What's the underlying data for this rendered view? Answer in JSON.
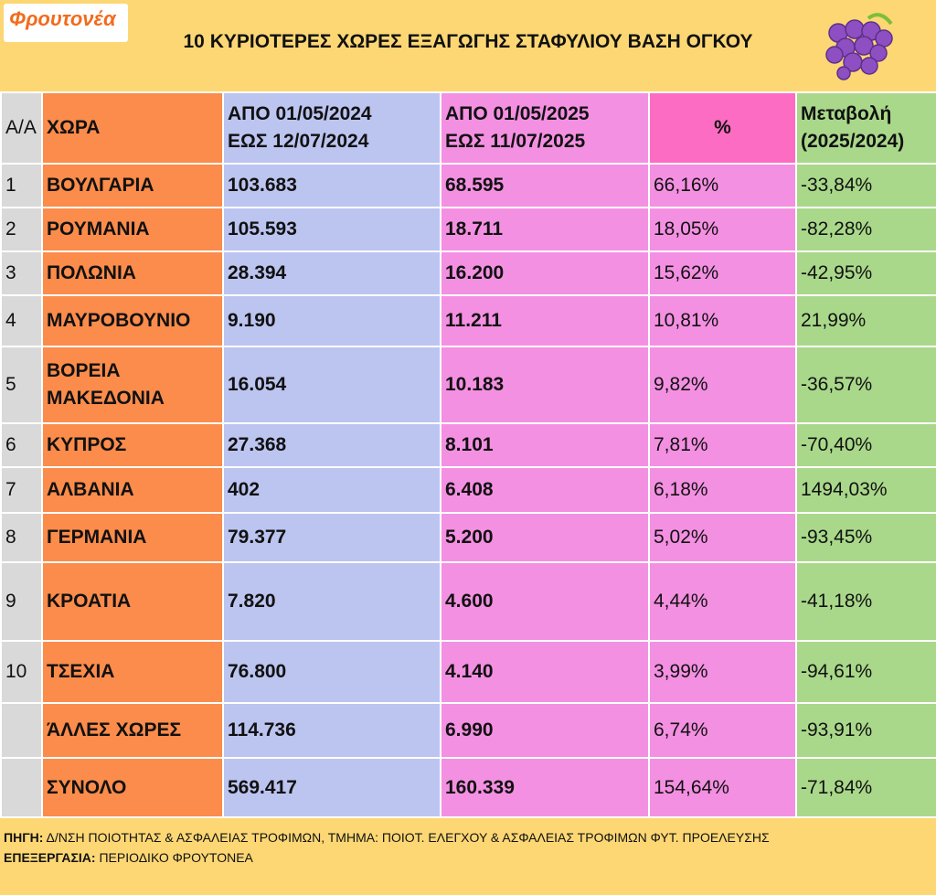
{
  "header": {
    "logo": "Φρουτονέα",
    "title": "10 ΚΥΡΙΟΤΕΡΕΣ ΧΩΡΕΣ ΕΞΑΓΩΓΗΣ ΣΤΑΦΥΛΙΟΥ ΒΑΣΗ ΟΓΚΟΥ"
  },
  "table": {
    "columns": [
      "Α/Α",
      "ΧΩΡΑ",
      "ΑΠΟ 01/05/2024\nΕΩΣ  12/07/2024",
      "ΑΠΟ 01/05/2025\nΕΩΣ  11/07/2025",
      "%",
      "Μεταβολή\n(2025/2024)"
    ],
    "rows": [
      {
        "aa": "1",
        "country": "ΒΟΥΛΓΑΡΙΑ",
        "v2024": "103.683",
        "v2025": "68.595",
        "pct": "66,16%",
        "change": "-33,84%"
      },
      {
        "aa": "2",
        "country": "ΡΟΥΜΑΝΙΑ",
        "v2024": "105.593",
        "v2025": "18.711",
        "pct": "18,05%",
        "change": "-82,28%"
      },
      {
        "aa": "3",
        "country": "ΠΟΛΩΝΙΑ",
        "v2024": "28.394",
        "v2025": "16.200",
        "pct": "15,62%",
        "change": "-42,95%"
      },
      {
        "aa": "4",
        "country": "ΜΑΥΡΟΒΟΥΝΙΟ",
        "v2024": "9.190",
        "v2025": "11.211",
        "pct": "10,81%",
        "change": "21,99%"
      },
      {
        "aa": "5",
        "country": "ΒΟΡΕΙΑ ΜΑΚΕΔΟΝΙΑ",
        "v2024": "16.054",
        "v2025": "10.183",
        "pct": "9,82%",
        "change": "-36,57%"
      },
      {
        "aa": "6",
        "country": "ΚΥΠΡΟΣ",
        "v2024": "27.368",
        "v2025": "8.101",
        "pct": "7,81%",
        "change": "-70,40%"
      },
      {
        "aa": "7",
        "country": "ΑΛΒΑΝΙΑ",
        "v2024": "402",
        "v2025": "6.408",
        "pct": "6,18%",
        "change": "1494,03%"
      },
      {
        "aa": "8",
        "country": "ΓΕΡΜΑΝΙΑ",
        "v2024": "79.377",
        "v2025": "5.200",
        "pct": "5,02%",
        "change": "-93,45%"
      },
      {
        "aa": "9",
        "country": "ΚΡΟΑΤΙΑ",
        "v2024": "7.820",
        "v2025": "4.600",
        "pct": "4,44%",
        "change": "-41,18%"
      },
      {
        "aa": "10",
        "country": "ΤΣΕΧΙΑ",
        "v2024": "76.800",
        "v2025": "4.140",
        "pct": "3,99%",
        "change": "-94,61%"
      },
      {
        "country": "ΆΛΛΕΣ ΧΩΡΕΣ",
        "v2024": "114.736",
        "v2025": "6.990",
        "pct": "6,74%",
        "change": "-93,91%"
      },
      {
        "country": "ΣΥΝΟΛΟ",
        "v2024": "569.417",
        "v2025": "160.339",
        "pct": "154,64%",
        "change": "-71,84%"
      }
    ]
  },
  "footer": {
    "source_label": "ΠΗΓΗ:",
    "source": "Δ/ΝΣΗ ΠΟΙΟΤΗΤΑΣ & ΑΣΦΑΛΕΙΑΣ ΤΡΟΦΙΜΩΝ, ΤΜΗΜΑ: ΠΟΙΟΤ. ΕΛΕΓΧΟΥ & ΑΣΦΑΛΕΙΑΣ ΤΡΟΦΙΜΩΝ ΦΥΤ. ΠΡΟΕΛΕΥΣΗΣ",
    "processing_label": "ΕΠΕΞΕΡΓΑΣΙΑ:",
    "processing": "ΠΕΡΙΟΔΙΚΟ ΦΡΟΥΤΟΝΕΑ"
  }
}
